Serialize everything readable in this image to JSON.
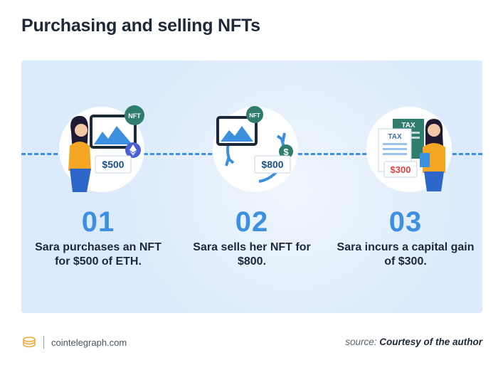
{
  "title": "Purchasing and selling NFTs",
  "steps": [
    {
      "number": "01",
      "description": "Sara purchases an NFT for $500 of ETH.",
      "badge": "NFT",
      "price": "$500"
    },
    {
      "number": "02",
      "description": "Sara sells her NFT for $800.",
      "badge": "NFT",
      "price": "$800",
      "coin_symbol": "$"
    },
    {
      "number": "03",
      "description": "Sara incurs a capital gain of $300.",
      "tax_label": "TAX",
      "price": "$300"
    }
  ],
  "footer": {
    "brand": "cointelegraph.com",
    "source_prefix": "source:",
    "source_value": "Courtesy of the author"
  },
  "colors": {
    "accent": "#3d8fe0",
    "panel": "#dcebfb",
    "text": "#1d2838",
    "badge_green": "#2f7d6d",
    "price_red": "#e0433f"
  },
  "icons": [
    "cointelegraph-logo-icon",
    "ethereum-icon",
    "dollar-coin-icon"
  ]
}
